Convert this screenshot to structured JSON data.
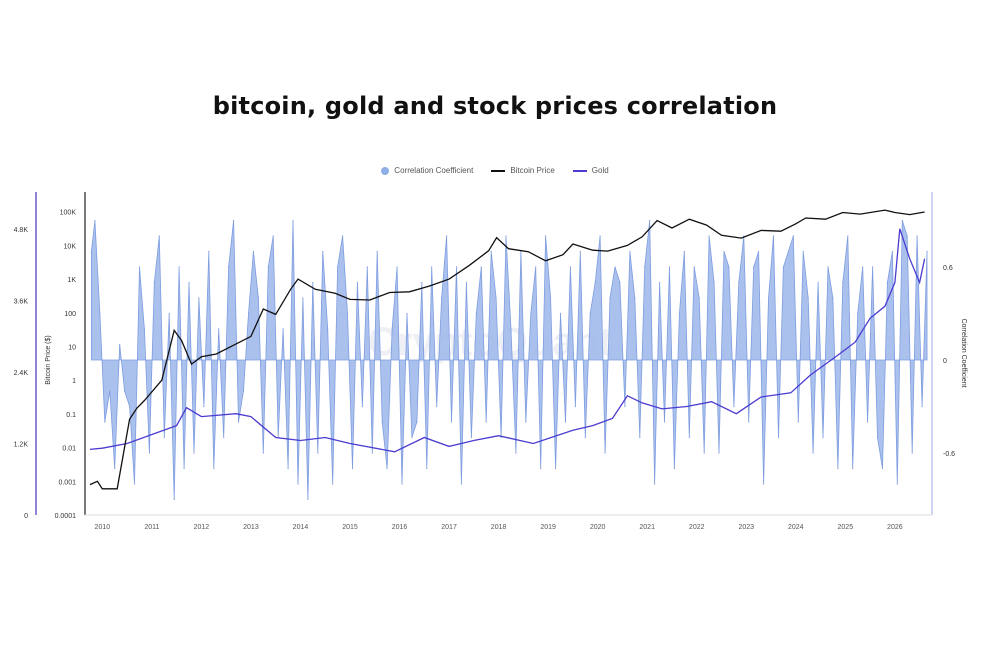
{
  "title": "bitcoin, gold and stock prices correlation",
  "legend": {
    "correlation": "Correlation Coefficient",
    "bitcoin": "Bitcoin Price",
    "gold": "Gold"
  },
  "colors": {
    "correlation_fill": "#9CB6EA",
    "correlation_stroke": "#7E9DE0",
    "bitcoin_line": "#111111",
    "gold_line": "#4B3BD0",
    "gold_axis": "#6A5CC7"
  },
  "watermark": "CryptoQuant",
  "chart_data": {
    "type": "line",
    "x_ticks": [
      "2010",
      "2011",
      "2012",
      "2013",
      "2014",
      "2015",
      "2016",
      "2017",
      "2018",
      "2019",
      "2020",
      "2021",
      "2022",
      "2023",
      "2024",
      "2025",
      "2026"
    ],
    "y_left_gold": {
      "label": "",
      "ticks": [
        "0",
        "1.2K",
        "2.4K",
        "3.6K",
        "4.8K"
      ],
      "range": [
        0,
        5200
      ]
    },
    "y_left_bitcoin": {
      "label": "Bitcoin Price ($)",
      "scale": "log",
      "ticks": [
        "0.0001",
        "0.001",
        "0.01",
        "0.1",
        "1",
        "10",
        "100",
        "1K",
        "10K",
        "100K"
      ]
    },
    "y_right": {
      "label": "Correlation Coefficient",
      "ticks": [
        "-0.6",
        "0",
        "0.6"
      ],
      "range": [
        -1.0,
        1.0
      ]
    },
    "series": [
      {
        "name": "Bitcoin Price",
        "x": [
          2009.75,
          2009.9,
          2010.0,
          2010.3,
          2010.55,
          2010.7,
          2010.85,
          2011.2,
          2011.45,
          2011.6,
          2011.8,
          2012.0,
          2012.3,
          2012.7,
          2013.0,
          2013.25,
          2013.5,
          2013.8,
          2013.95,
          2014.3,
          2014.7,
          2015.0,
          2015.4,
          2015.8,
          2016.2,
          2016.6,
          2017.0,
          2017.4,
          2017.8,
          2017.96,
          2018.2,
          2018.6,
          2018.95,
          2019.3,
          2019.5,
          2019.9,
          2020.2,
          2020.6,
          2020.9,
          2021.2,
          2021.5,
          2021.85,
          2022.2,
          2022.5,
          2022.9,
          2023.3,
          2023.7,
          2024.0,
          2024.2,
          2024.6,
          2024.95,
          2025.3,
          2025.8,
          2026.0,
          2026.3,
          2026.6
        ],
        "values": [
          0.0008,
          0.001,
          0.0006,
          0.0006,
          0.07,
          0.15,
          0.25,
          1.0,
          30,
          15,
          3,
          5,
          6,
          12,
          20,
          130,
          90,
          500,
          1000,
          500,
          380,
          250,
          240,
          400,
          420,
          620,
          1000,
          2500,
          7000,
          17000,
          8000,
          6500,
          3500,
          5300,
          11000,
          7200,
          6800,
          10000,
          18000,
          55000,
          33000,
          60000,
          40000,
          20000,
          16500,
          28000,
          26500,
          44000,
          65000,
          60000,
          95000,
          85000,
          112000,
          95000,
          82000,
          98000
        ]
      },
      {
        "name": "Gold",
        "x": [
          2009.75,
          2010.0,
          2010.5,
          2011.0,
          2011.5,
          2011.7,
          2012.0,
          2012.7,
          2013.0,
          2013.5,
          2014.0,
          2014.5,
          2015.0,
          2015.9,
          2016.5,
          2017.0,
          2017.5,
          2018.0,
          2018.7,
          2019.5,
          2019.9,
          2020.3,
          2020.6,
          2020.9,
          2021.3,
          2021.8,
          2022.3,
          2022.8,
          2023.3,
          2023.9,
          2024.3,
          2024.8,
          2025.2,
          2025.5,
          2025.8,
          2026.0,
          2026.1,
          2026.3,
          2026.5,
          2026.6
        ],
        "values": [
          1100,
          1120,
          1200,
          1350,
          1500,
          1800,
          1650,
          1700,
          1650,
          1300,
          1250,
          1300,
          1200,
          1060,
          1300,
          1150,
          1250,
          1330,
          1200,
          1420,
          1500,
          1620,
          2000,
          1880,
          1780,
          1820,
          1900,
          1700,
          1980,
          2050,
          2350,
          2650,
          2900,
          3300,
          3500,
          3900,
          4800,
          4300,
          3900,
          4300
        ]
      },
      {
        "name": "Correlation Coefficient",
        "x": [
          2009.78,
          2009.85,
          2009.95,
          2010.05,
          2010.15,
          2010.25,
          2010.35,
          2010.45,
          2010.55,
          2010.65,
          2010.75,
          2010.85,
          2010.95,
          2011.05,
          2011.15,
          2011.25,
          2011.35,
          2011.45,
          2011.55,
          2011.65,
          2011.75,
          2011.85,
          2011.95,
          2012.05,
          2012.15,
          2012.25,
          2012.35,
          2012.45,
          2012.55,
          2012.65,
          2012.75,
          2012.85,
          2012.95,
          2013.05,
          2013.15,
          2013.25,
          2013.35,
          2013.45,
          2013.55,
          2013.65,
          2013.75,
          2013.85,
          2013.95,
          2014.05,
          2014.15,
          2014.25,
          2014.35,
          2014.45,
          2014.55,
          2014.65,
          2014.75,
          2014.85,
          2014.95,
          2015.05,
          2015.15,
          2015.25,
          2015.35,
          2015.45,
          2015.55,
          2015.65,
          2015.75,
          2015.85,
          2015.95,
          2016.05,
          2016.15,
          2016.25,
          2016.35,
          2016.45,
          2016.55,
          2016.65,
          2016.75,
          2016.85,
          2016.95,
          2017.05,
          2017.15,
          2017.25,
          2017.35,
          2017.45,
          2017.55,
          2017.65,
          2017.75,
          2017.85,
          2017.95,
          2018.05,
          2018.15,
          2018.25,
          2018.35,
          2018.45,
          2018.55,
          2018.65,
          2018.75,
          2018.85,
          2018.95,
          2019.05,
          2019.15,
          2019.25,
          2019.35,
          2019.45,
          2019.55,
          2019.65,
          2019.75,
          2019.85,
          2019.95,
          2020.05,
          2020.15,
          2020.25,
          2020.35,
          2020.45,
          2020.55,
          2020.65,
          2020.75,
          2020.85,
          2020.95,
          2021.05,
          2021.15,
          2021.25,
          2021.35,
          2021.45,
          2021.55,
          2021.65,
          2021.75,
          2021.85,
          2021.95,
          2022.05,
          2022.15,
          2022.25,
          2022.35,
          2022.45,
          2022.55,
          2022.65,
          2022.75,
          2022.85,
          2022.95,
          2023.05,
          2023.15,
          2023.25,
          2023.35,
          2023.45,
          2023.55,
          2023.65,
          2023.75,
          2023.85,
          2023.95,
          2024.05,
          2024.15,
          2024.25,
          2024.35,
          2024.45,
          2024.55,
          2024.65,
          2024.75,
          2024.85,
          2024.95,
          2025.05,
          2025.15,
          2025.25,
          2025.35,
          2025.45,
          2025.55,
          2025.65,
          2025.75,
          2025.85,
          2025.95,
          2026.05,
          2026.15,
          2026.25,
          2026.35,
          2026.45,
          2026.55,
          2026.65
        ],
        "values": [
          0.7,
          0.9,
          0.3,
          -0.4,
          -0.2,
          -0.7,
          0.1,
          -0.2,
          -0.3,
          -0.8,
          0.6,
          0.2,
          -0.6,
          0.5,
          0.8,
          -0.5,
          0.3,
          -0.9,
          0.6,
          -0.7,
          0.5,
          -0.6,
          0.4,
          -0.3,
          0.7,
          -0.7,
          0.2,
          -0.5,
          0.6,
          0.9,
          -0.4,
          -0.2,
          0.3,
          0.7,
          0.4,
          -0.6,
          0.6,
          0.8,
          -0.5,
          0.2,
          -0.7,
          0.9,
          -0.8,
          0.4,
          -0.9,
          0.5,
          -0.6,
          0.7,
          0.2,
          -0.8,
          0.6,
          0.8,
          0.3,
          -0.7,
          0.5,
          -0.3,
          0.6,
          -0.6,
          0.7,
          -0.4,
          -0.7,
          0.2,
          0.6,
          -0.8,
          0.3,
          -0.5,
          -0.4,
          0.5,
          -0.7,
          0.6,
          -0.3,
          0.4,
          0.8,
          -0.4,
          0.6,
          -0.8,
          0.5,
          -0.5,
          0.3,
          0.6,
          -0.4,
          0.7,
          0.4,
          -0.5,
          0.8,
          0.2,
          -0.6,
          0.7,
          -0.4,
          0.3,
          0.6,
          -0.7,
          0.8,
          0.4,
          -0.7,
          0.3,
          -0.4,
          0.6,
          -0.3,
          0.7,
          -0.5,
          0.3,
          0.5,
          0.8,
          -0.6,
          0.4,
          0.6,
          0.5,
          -0.3,
          0.7,
          0.4,
          -0.5,
          0.6,
          0.9,
          -0.8,
          0.5,
          -0.4,
          0.6,
          -0.7,
          0.3,
          0.7,
          -0.5,
          0.6,
          0.4,
          -0.6,
          0.8,
          0.5,
          -0.6,
          0.7,
          0.6,
          -0.3,
          0.5,
          0.8,
          -0.4,
          0.6,
          0.7,
          -0.8,
          0.4,
          0.8,
          -0.5,
          0.6,
          0.7,
          0.8,
          -0.4,
          0.7,
          0.4,
          -0.6,
          0.5,
          -0.5,
          0.6,
          0.4,
          -0.7,
          0.5,
          0.8,
          -0.7,
          0.3,
          0.6,
          -0.4,
          0.6,
          -0.5,
          -0.7,
          0.5,
          0.7,
          -0.8,
          0.9,
          0.8,
          -0.6,
          0.8,
          -0.3,
          0.7
        ]
      }
    ]
  }
}
